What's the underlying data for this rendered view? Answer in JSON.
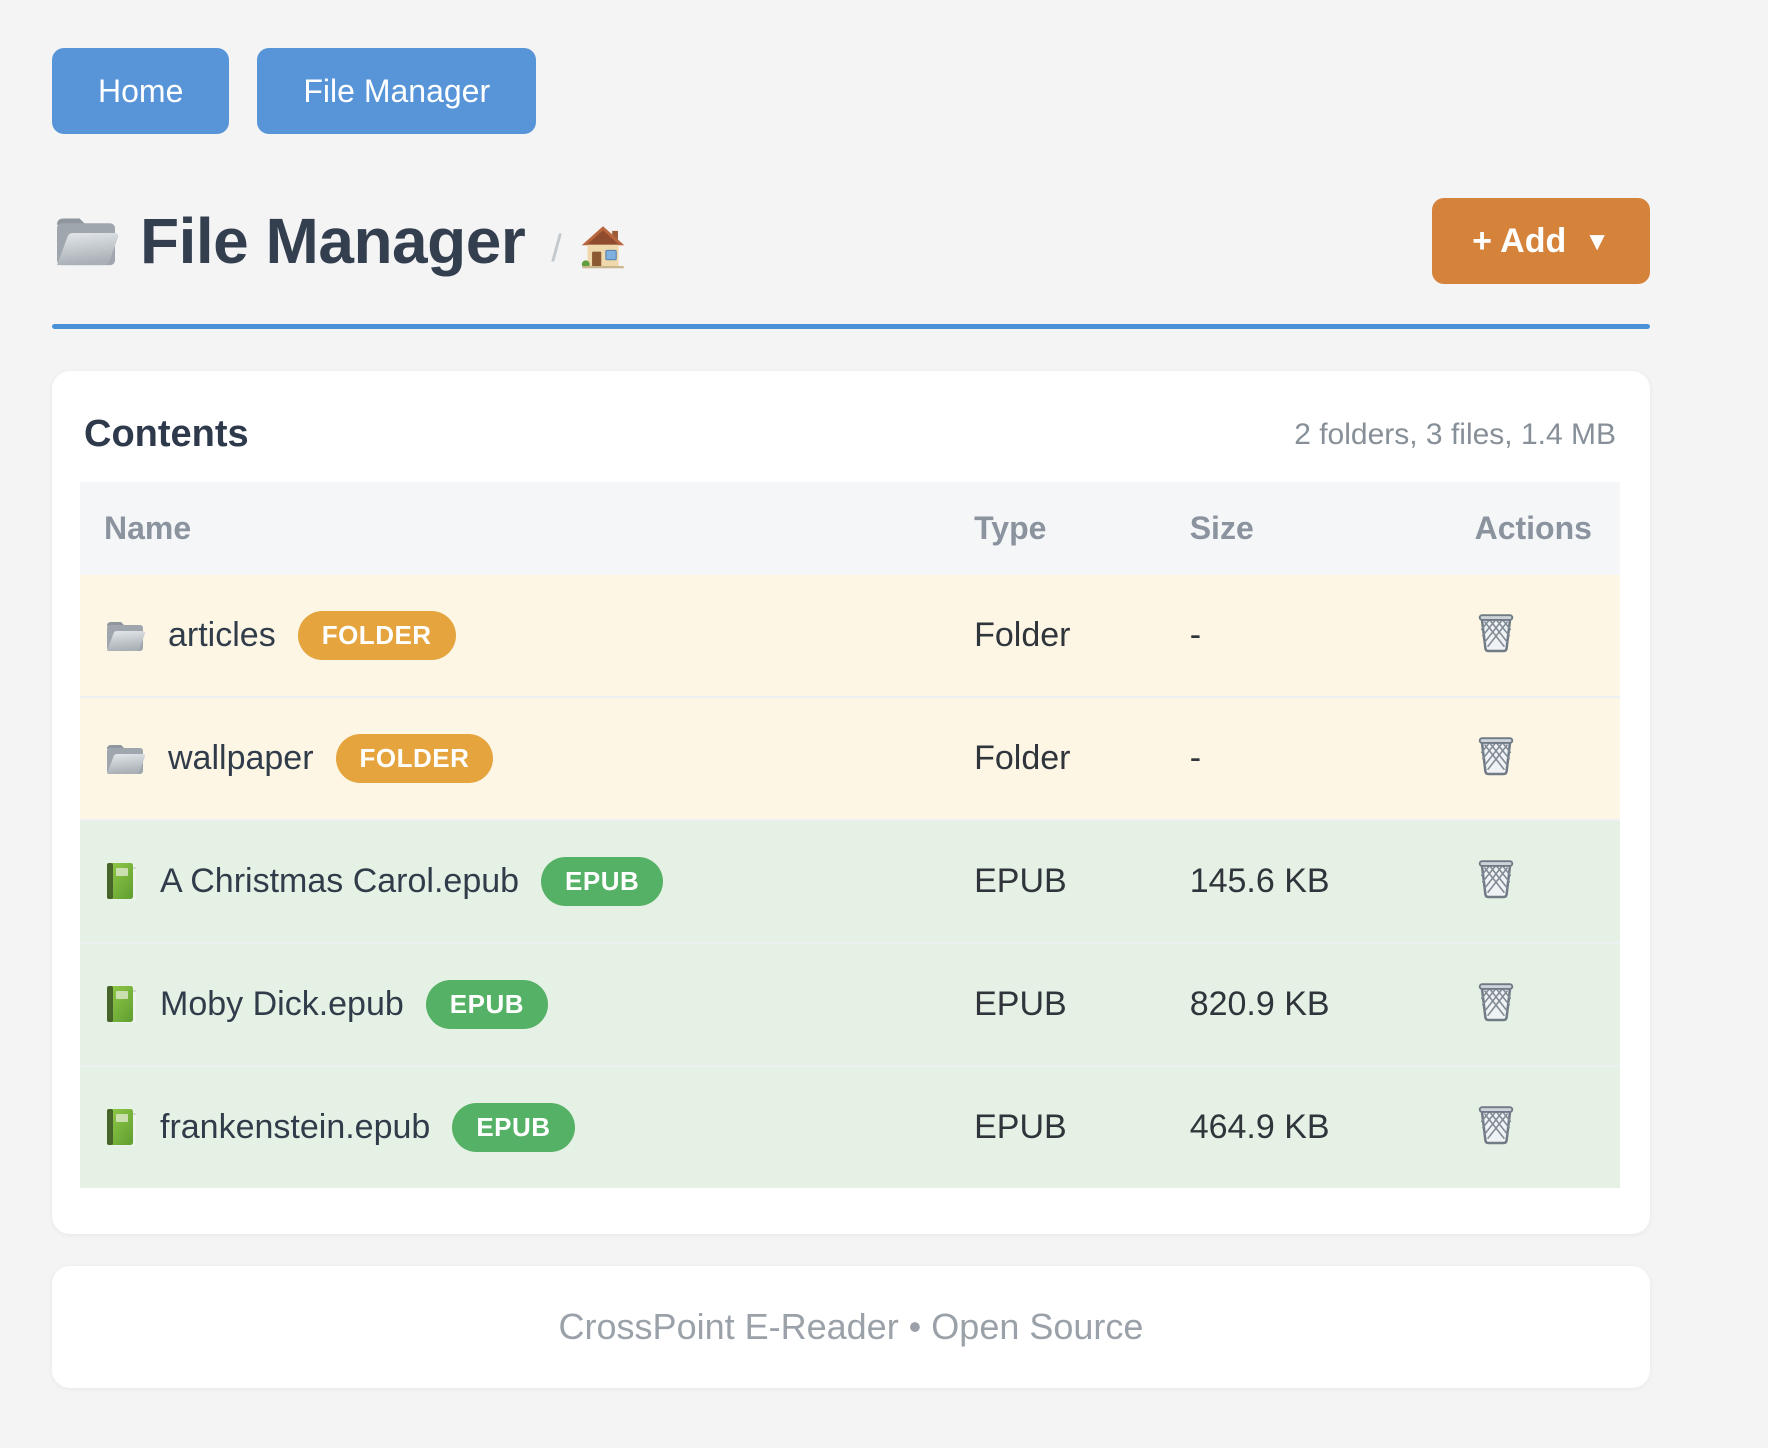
{
  "nav": {
    "buttons": [
      {
        "label": "Home"
      },
      {
        "label": "File Manager"
      }
    ]
  },
  "header": {
    "title": "File Manager",
    "title_icon": "folder-icon",
    "breadcrumb": {
      "separator": "/",
      "home_icon": "home-icon"
    },
    "add_button": {
      "label": "+ Add",
      "caret": "▼"
    }
  },
  "content_card": {
    "heading": "Contents",
    "summary": "2 folders, 3 files, 1.4 MB",
    "table": {
      "columns": [
        "Name",
        "Type",
        "Size",
        "Actions"
      ],
      "rows": [
        {
          "name": "articles",
          "badge": "FOLDER",
          "kind": "folder",
          "icon": "folder-icon",
          "type": "Folder",
          "size": "-",
          "action_icon": "trash-icon"
        },
        {
          "name": "wallpaper",
          "badge": "FOLDER",
          "kind": "folder",
          "icon": "folder-icon",
          "type": "Folder",
          "size": "-",
          "action_icon": "trash-icon"
        },
        {
          "name": "A Christmas Carol.epub",
          "badge": "EPUB",
          "kind": "epub",
          "icon": "book-icon",
          "type": "EPUB",
          "size": "145.6 KB",
          "action_icon": "trash-icon"
        },
        {
          "name": "Moby Dick.epub",
          "badge": "EPUB",
          "kind": "epub",
          "icon": "book-icon",
          "type": "EPUB",
          "size": "820.9 KB",
          "action_icon": "trash-icon"
        },
        {
          "name": "frankenstein.epub",
          "badge": "EPUB",
          "kind": "epub",
          "icon": "book-icon",
          "type": "EPUB",
          "size": "464.9 KB",
          "action_icon": "trash-icon"
        }
      ]
    }
  },
  "footer": {
    "text": "CrossPoint E-Reader • Open Source"
  },
  "colors": {
    "nav_button": "#5795d8",
    "divider": "#4a90d9",
    "add_button": "#d5823b",
    "folder_badge": "#e5a43e",
    "epub_badge": "#55b165",
    "folder_row_bg": "#fdf6e4",
    "epub_row_bg": "#e6f1e5",
    "page_bg": "#f4f4f4"
  }
}
